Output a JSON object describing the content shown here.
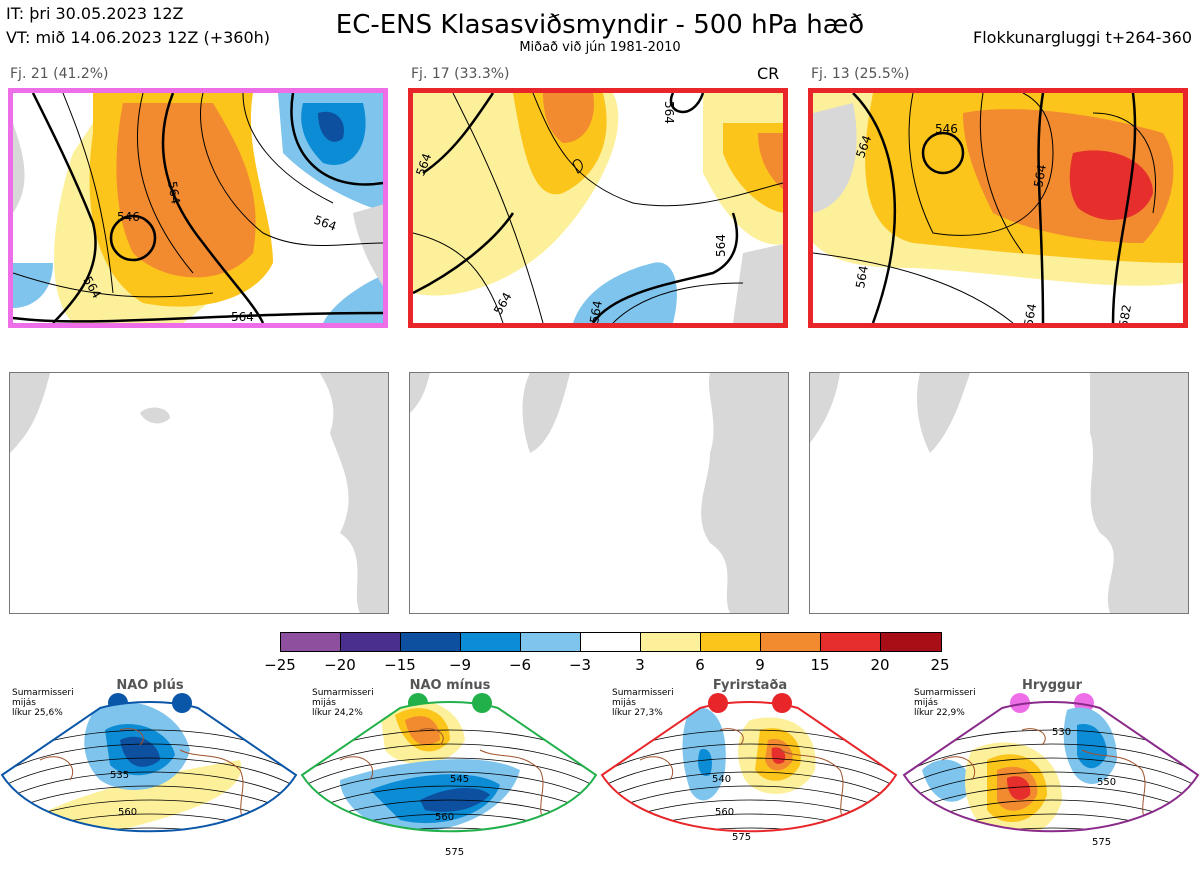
{
  "header": {
    "it_line": "IT: þri 30.05.2023 12Z",
    "vt_line": "VT: mið 14.06.2023 12Z  (+360h)",
    "title": "EC-ENS Klasasviðsmyndir - 500 hPa hæð",
    "subtitle": "Miðað við jún 1981-2010",
    "window": "Flokkunargluggi t+264-360"
  },
  "clusters": [
    {
      "label": "Fj. 21 (41.2%)",
      "regime_tag": "",
      "border_color": "#ee6ee8",
      "contours": [
        "546",
        "564",
        "564",
        "564",
        "564"
      ]
    },
    {
      "label": "Fj. 17 (33.3%)",
      "regime_tag": "CR",
      "border_color": "#e8262a",
      "contours": [
        "564",
        "564",
        "564",
        "564",
        "564"
      ]
    },
    {
      "label": "Fj. 13 (25.5%)",
      "regime_tag": "",
      "border_color": "#e8262a",
      "contours": [
        "546",
        "564",
        "564",
        "564",
        "582"
      ]
    }
  ],
  "colorbar": {
    "colors": [
      "#8e4f9e",
      "#4a2f8e",
      "#0e50a0",
      "#0d8cd6",
      "#7ec4ec",
      "#ffffff",
      "#fdf09a",
      "#fcc51c",
      "#f28a30",
      "#e62e2c",
      "#a80e16"
    ],
    "ticks": [
      "−25",
      "−20",
      "−15",
      "−9",
      "−6",
      "−3",
      "3",
      "6",
      "9",
      "15",
      "20",
      "25"
    ]
  },
  "regimes": [
    {
      "name": "NAO plús",
      "season": "Sumarmisseri",
      "month": "mijás",
      "likelihood": "líkur 25,6%",
      "dot_color": "#0a56a8",
      "border_color": "#0a56a8",
      "contours": [
        "535",
        "560"
      ]
    },
    {
      "name": "NAO mínus",
      "season": "Sumarmisseri",
      "month": "mijás",
      "likelihood": "líkur 24,2%",
      "dot_color": "#21b04a",
      "border_color": "#21b04a",
      "contours": [
        "545",
        "560",
        "575"
      ]
    },
    {
      "name": "Fyrirstaða",
      "season": "Sumarmisseri",
      "month": "mijás",
      "likelihood": "líkur 27,3%",
      "dot_color": "#e8262a",
      "border_color": "#e8262a",
      "contours": [
        "540",
        "560",
        "575"
      ]
    },
    {
      "name": "Hryggur",
      "season": "Sumarmisseri",
      "month": "mijás",
      "likelihood": "líkur 22,9%",
      "dot_color": "#ee6ee8",
      "border_color": "#8a2a8a",
      "contours": [
        "530",
        "550",
        "575"
      ]
    }
  ]
}
